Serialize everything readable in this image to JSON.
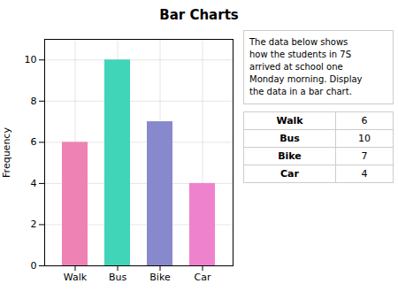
{
  "chart_data": {
    "type": "bar",
    "title": "Bar Charts",
    "categories": [
      "Walk",
      "Bus",
      "Bike",
      "Car"
    ],
    "values": [
      6,
      10,
      7,
      4
    ],
    "colors": [
      "#EE82B4",
      "#40D4B8",
      "#8888CC",
      "#EE82CC"
    ],
    "ylabel": "Frequency",
    "ylim": [
      0,
      11
    ],
    "yticks": [
      0,
      2,
      4,
      6,
      8,
      10
    ],
    "grid": true,
    "annotations": [
      "The data below shows\nhow the students in 7S\narrived at school one\nMonday morning. Display\nthe data in a bar chart."
    ],
    "table": [
      [
        "Walk",
        "6"
      ],
      [
        "Bus",
        "10"
      ],
      [
        "Bike",
        "7"
      ],
      [
        "Car",
        "4"
      ]
    ]
  }
}
